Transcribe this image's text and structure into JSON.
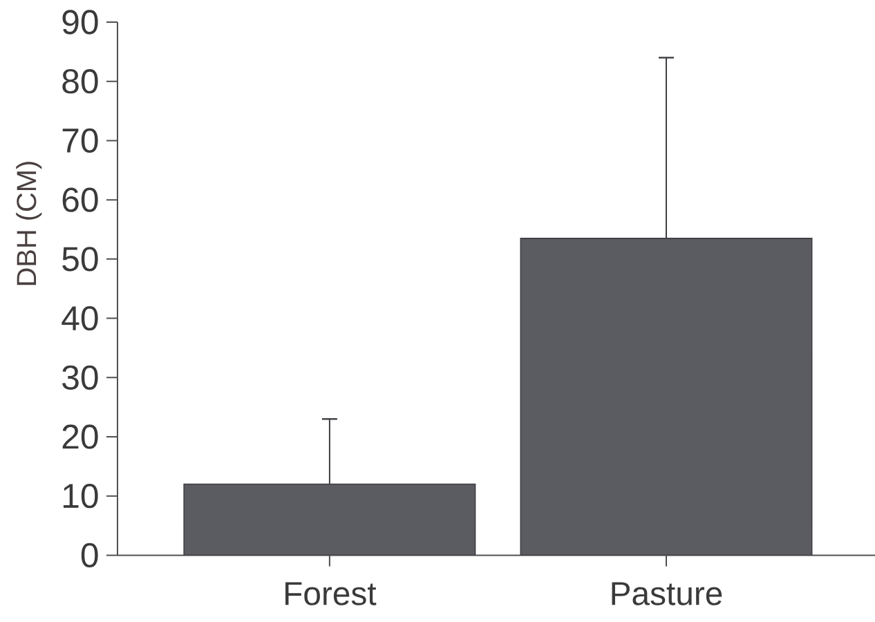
{
  "chart_data": {
    "type": "bar",
    "ylabel": "DBH (CM)",
    "categories": [
      "Forest",
      "Pasture"
    ],
    "values": [
      12,
      53.5
    ],
    "errors": [
      [
        12,
        23
      ],
      [
        53.5,
        84
      ]
    ],
    "color": "#5b5b62",
    "ylim": [
      0,
      90
    ],
    "yticks": [
      0,
      10,
      20,
      30,
      40,
      50,
      60,
      70,
      80,
      90
    ]
  }
}
